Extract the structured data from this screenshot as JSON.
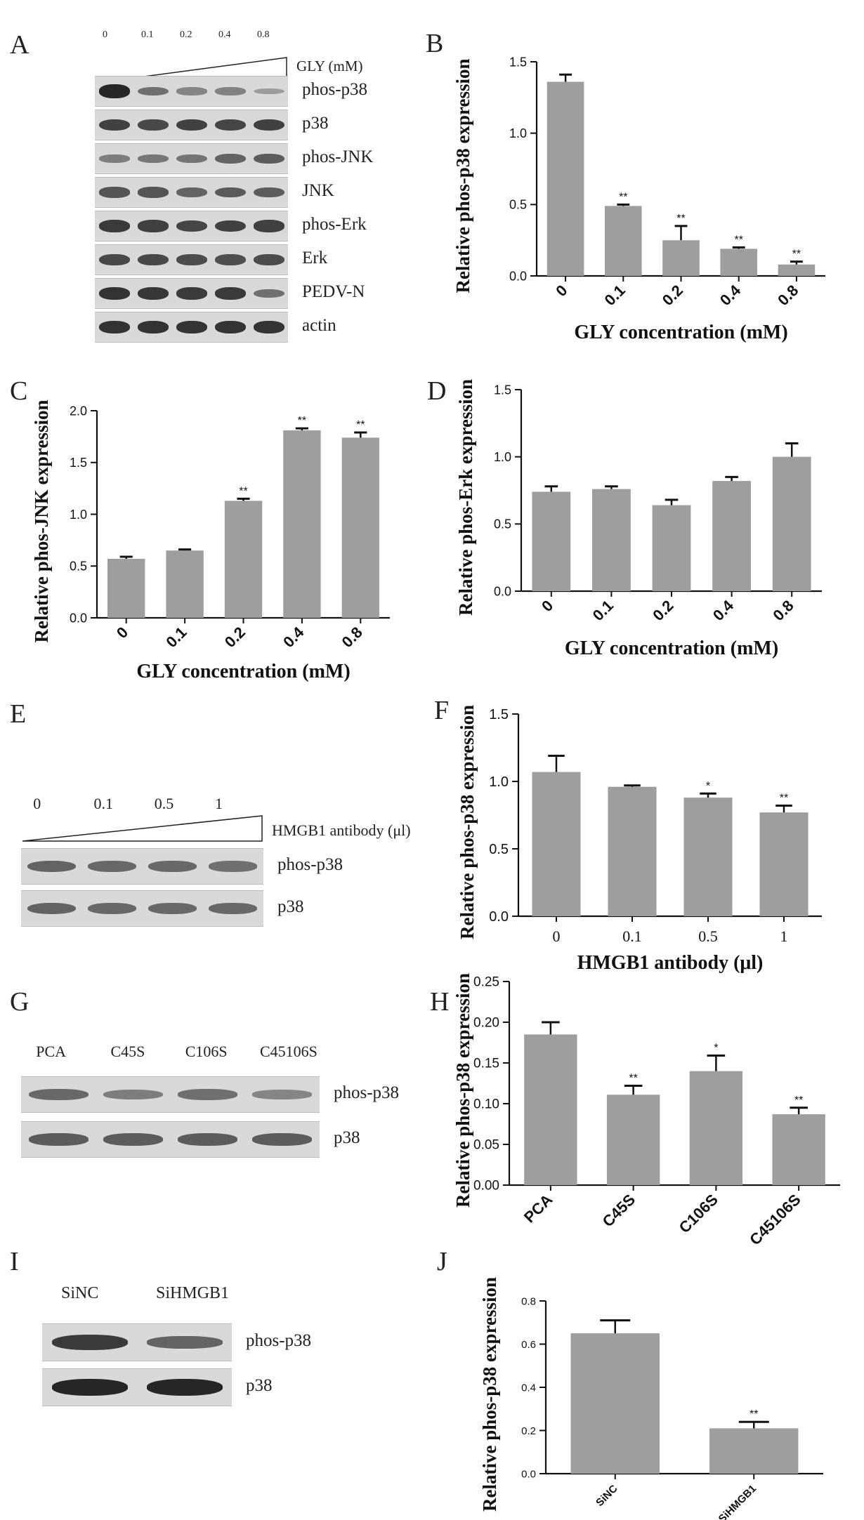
{
  "panel_labels": {
    "A": "A",
    "B": "B",
    "C": "C",
    "D": "D",
    "E": "E",
    "F": "F",
    "G": "G",
    "H": "H",
    "I": "I",
    "J": "J"
  },
  "blot_A": {
    "lanes": [
      "0",
      "0.1",
      "0.2",
      "0.4",
      "0.8"
    ],
    "treatment": "GLY (mM)",
    "rows": [
      {
        "label": "phos-p38",
        "intensities": [
          1.0,
          0.45,
          0.3,
          0.32,
          0.12
        ]
      },
      {
        "label": "p38",
        "intensities": [
          0.8,
          0.75,
          0.8,
          0.78,
          0.8
        ]
      },
      {
        "label": "phos-JNK",
        "intensities": [
          0.35,
          0.4,
          0.42,
          0.55,
          0.6
        ]
      },
      {
        "label": "JNK",
        "intensities": [
          0.65,
          0.65,
          0.55,
          0.62,
          0.6
        ]
      },
      {
        "label": "phos-Erk",
        "intensities": [
          0.85,
          0.82,
          0.78,
          0.8,
          0.82
        ]
      },
      {
        "label": "Erk",
        "intensities": [
          0.75,
          0.75,
          0.72,
          0.7,
          0.72
        ]
      },
      {
        "label": "PEDV-N",
        "intensities": [
          0.9,
          0.88,
          0.85,
          0.85,
          0.45
        ]
      },
      {
        "label": "actin",
        "intensities": [
          0.9,
          0.9,
          0.9,
          0.9,
          0.9
        ]
      }
    ]
  },
  "blot_E": {
    "lanes": [
      "0",
      "0.1",
      "0.5",
      "1"
    ],
    "treatment": "HMGB1 antibody (μl)",
    "rows": [
      {
        "label": "phos-p38",
        "intensities": [
          0.55,
          0.5,
          0.5,
          0.45
        ]
      },
      {
        "label": "p38",
        "intensities": [
          0.55,
          0.5,
          0.5,
          0.5
        ]
      }
    ]
  },
  "blot_G": {
    "lanes": [
      "PCA",
      "C45S",
      "C106S",
      "C45106S"
    ],
    "rows": [
      {
        "label": "phos-p38",
        "intensities": [
          0.5,
          0.35,
          0.45,
          0.3
        ]
      },
      {
        "label": "p38",
        "intensities": [
          0.6,
          0.6,
          0.6,
          0.6
        ]
      }
    ]
  },
  "blot_I": {
    "lanes": [
      "SiNC",
      "SiHMGB1"
    ],
    "rows": [
      {
        "label": "phos-p38",
        "intensities": [
          0.85,
          0.55
        ]
      },
      {
        "label": "p38",
        "intensities": [
          1.0,
          1.0
        ]
      }
    ]
  },
  "chart_data": [
    {
      "id": "B",
      "type": "bar",
      "categories": [
        "0",
        "0.1",
        "0.2",
        "0.4",
        "0.8"
      ],
      "values": [
        1.36,
        0.49,
        0.25,
        0.19,
        0.08
      ],
      "errors": [
        0.05,
        0.01,
        0.1,
        0.01,
        0.02
      ],
      "significance": [
        "",
        "**",
        "**",
        "**",
        "**"
      ],
      "xlabel": "GLY concentration (mM)",
      "ylabel": "Relative phos-p38 expression",
      "ylim": [
        0,
        1.5
      ],
      "yticks": [
        "0.0",
        "0.5",
        "1.0",
        "1.5"
      ]
    },
    {
      "id": "C",
      "type": "bar",
      "categories": [
        "0",
        "0.1",
        "0.2",
        "0.4",
        "0.8"
      ],
      "values": [
        0.57,
        0.65,
        1.13,
        1.81,
        1.74
      ],
      "errors": [
        0.02,
        0.01,
        0.02,
        0.02,
        0.05
      ],
      "significance": [
        "",
        "",
        "**",
        "**",
        "**"
      ],
      "xlabel": "GLY concentration (mM)",
      "ylabel": "Relative phos-JNK expression",
      "ylim": [
        0,
        2.0
      ],
      "yticks": [
        "0.0",
        "0.5",
        "1.0",
        "1.5",
        "2.0"
      ]
    },
    {
      "id": "D",
      "type": "bar",
      "categories": [
        "0",
        "0.1",
        "0.2",
        "0.4",
        "0.8"
      ],
      "values": [
        0.74,
        0.76,
        0.64,
        0.82,
        1.0
      ],
      "errors": [
        0.04,
        0.02,
        0.04,
        0.03,
        0.1
      ],
      "significance": [
        "",
        "",
        "",
        "",
        ""
      ],
      "xlabel": "GLY concentration (mM)",
      "ylabel": "Relative phos-Erk expression",
      "ylim": [
        0,
        1.5
      ],
      "yticks": [
        "0.0",
        "0.5",
        "1.0",
        "1.5"
      ]
    },
    {
      "id": "F",
      "type": "bar",
      "categories": [
        "0",
        "0.1",
        "0.5",
        "1"
      ],
      "values": [
        1.07,
        0.96,
        0.88,
        0.77
      ],
      "errors": [
        0.12,
        0.01,
        0.03,
        0.05
      ],
      "significance": [
        "",
        "",
        "*",
        "**"
      ],
      "xlabel": "HMGB1 antibody (μl)",
      "ylabel": "Relative phos-p38 expression",
      "ylim": [
        0,
        1.5
      ],
      "yticks": [
        "0.0",
        "0.5",
        "1.0",
        "1.5"
      ]
    },
    {
      "id": "H",
      "type": "bar",
      "categories": [
        "PCA",
        "C45S",
        "C106S",
        "C45106S"
      ],
      "values": [
        0.185,
        0.111,
        0.14,
        0.087
      ],
      "errors": [
        0.015,
        0.011,
        0.019,
        0.008
      ],
      "significance": [
        "",
        "**",
        "*",
        "**"
      ],
      "xlabel": "",
      "ylabel": "Relative phos-p38 expression",
      "ylim": [
        0,
        0.25
      ],
      "yticks": [
        "0.00",
        "0.05",
        "0.10",
        "0.15",
        "0.20",
        "0.25"
      ]
    },
    {
      "id": "J",
      "type": "bar",
      "categories": [
        "SiNC",
        "SiHMGB1"
      ],
      "values": [
        0.65,
        0.21
      ],
      "errors": [
        0.06,
        0.03
      ],
      "significance": [
        "",
        "**"
      ],
      "xlabel": "",
      "ylabel": "Relative phos-p38 expression",
      "ylim": [
        0,
        0.8
      ],
      "yticks": [
        "0.0",
        "0.2",
        "0.4",
        "0.6",
        "0.8"
      ]
    }
  ],
  "colors": {
    "bar": "#9e9e9e",
    "axis": "#111111"
  }
}
